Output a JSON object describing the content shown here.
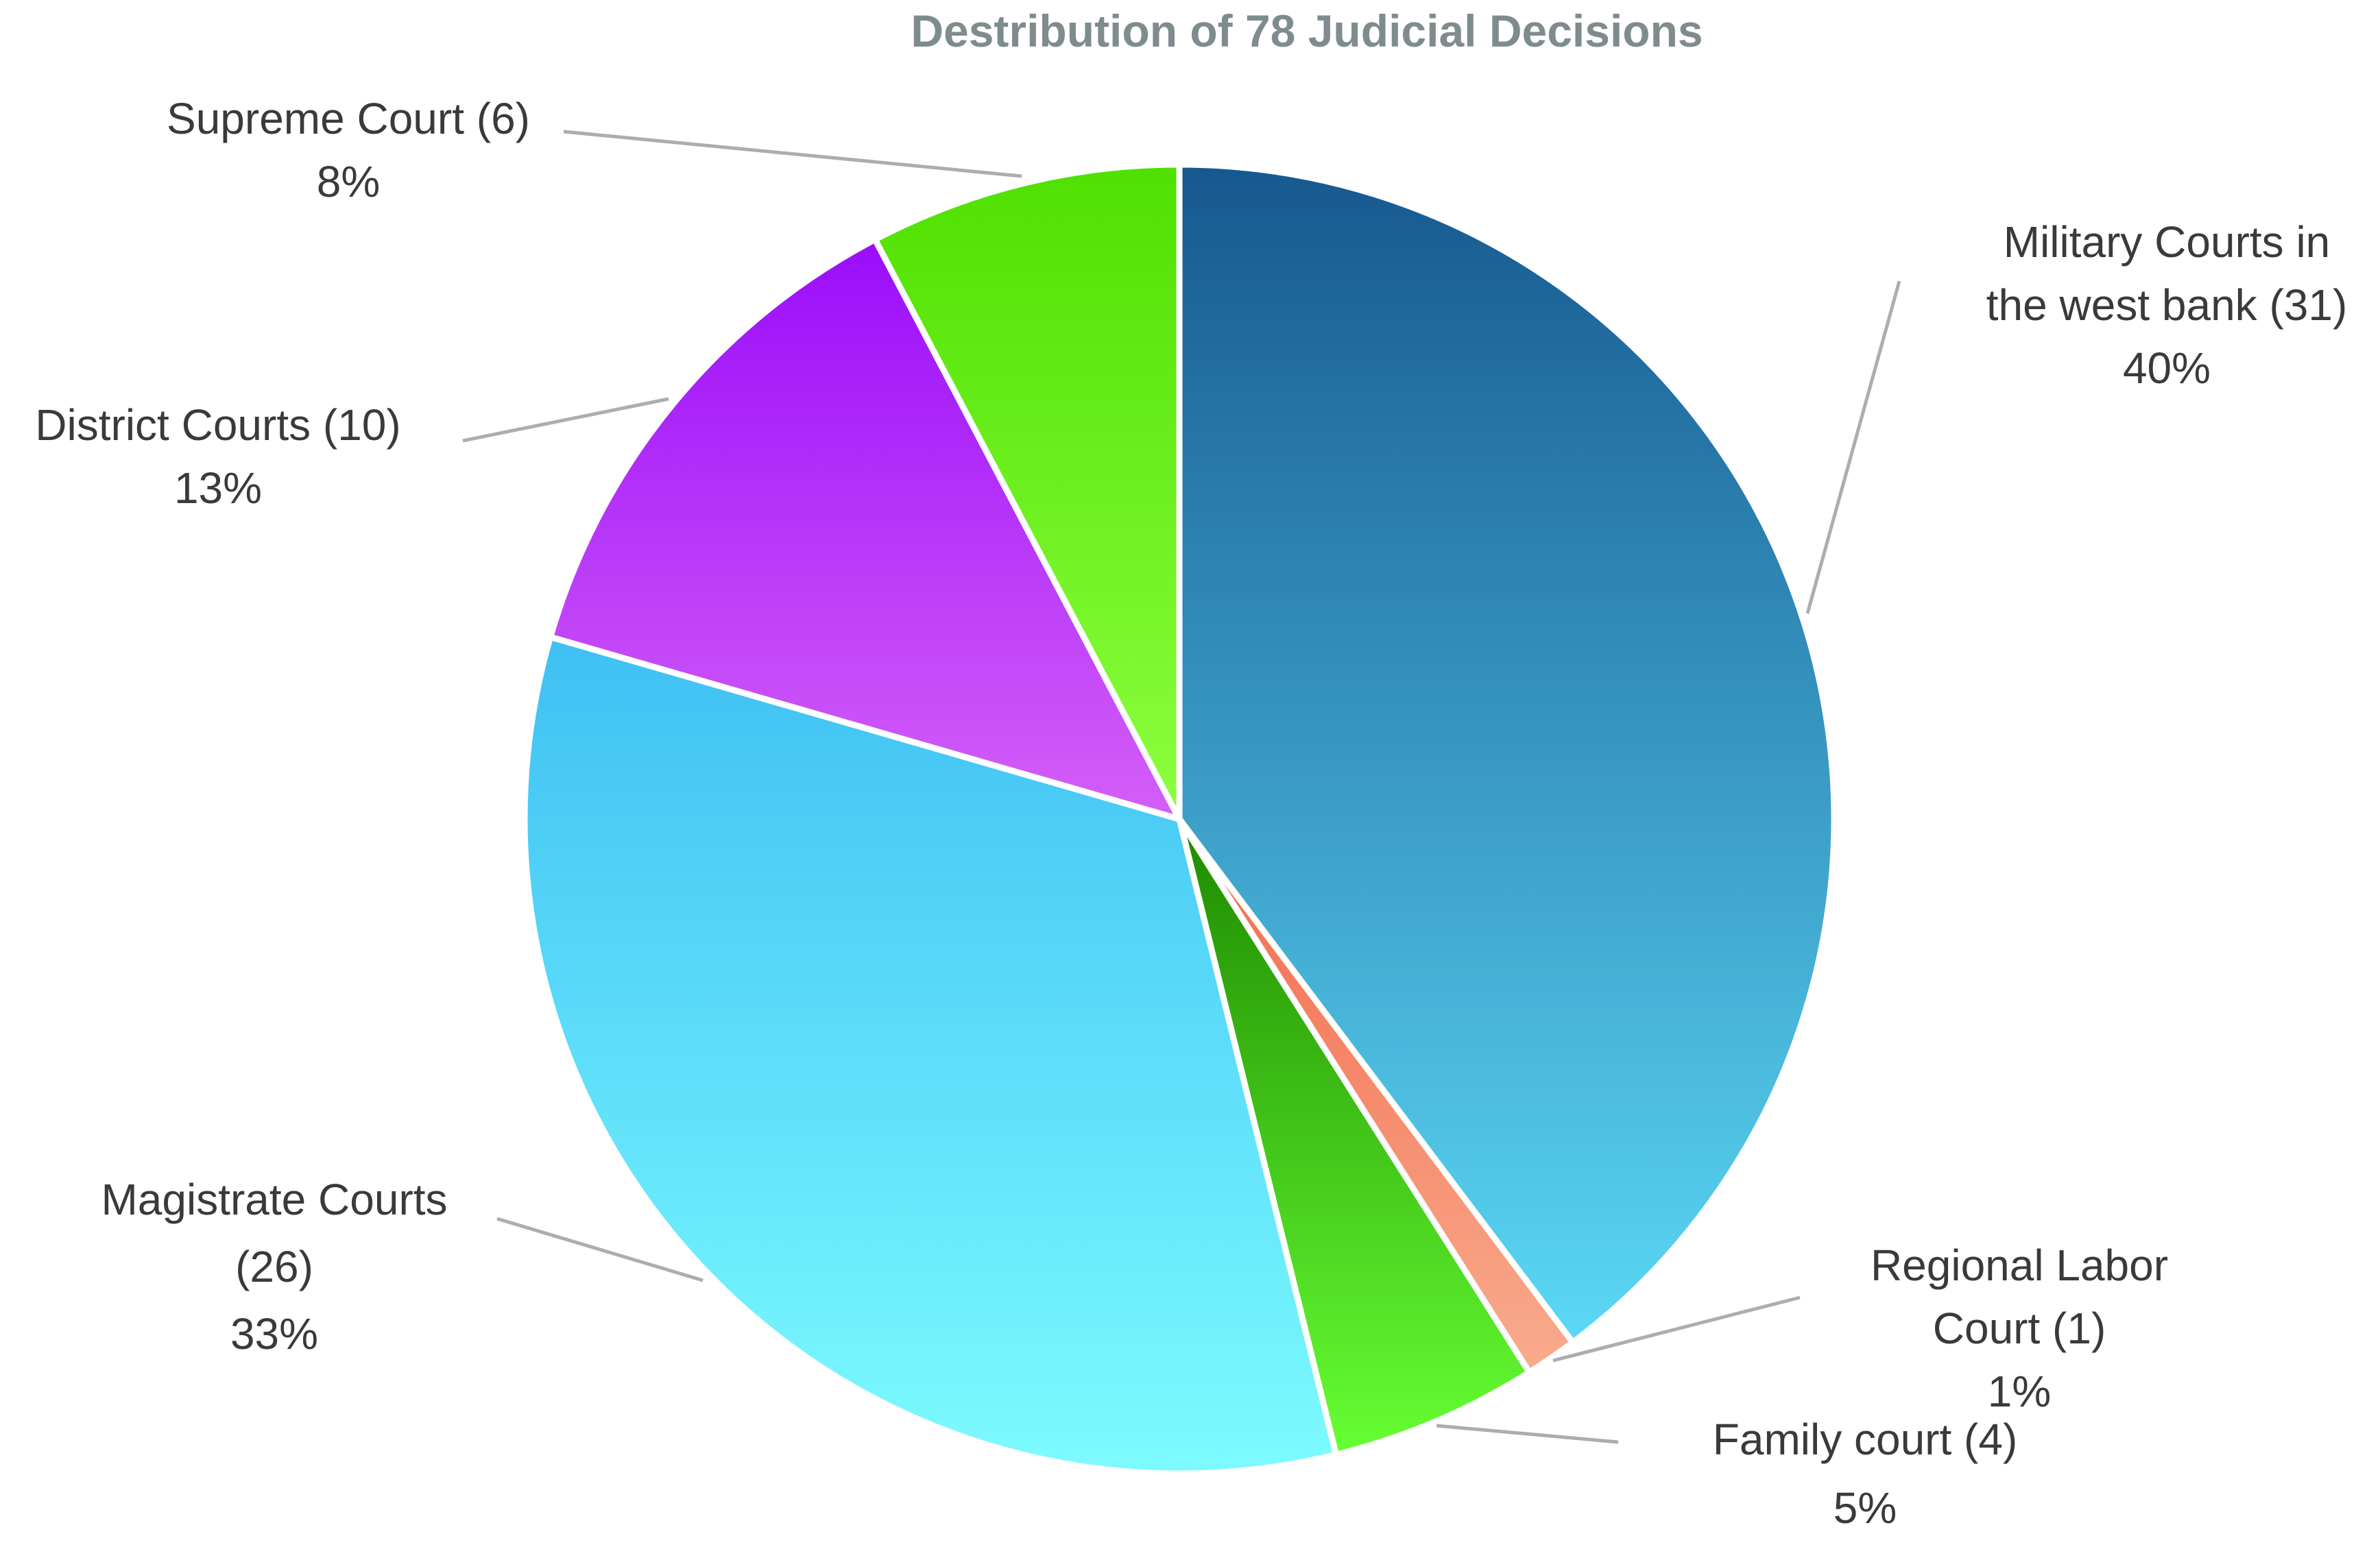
{
  "chart_data": {
    "type": "pie",
    "title": "Destribution of 78 Judicial Decisions",
    "slices": [
      {
        "key": "military",
        "lines": [
          "Military Courts in",
          "the west bank (31)",
          "40%"
        ],
        "value": 31,
        "percent": 40,
        "color_top": "#16588f",
        "color_bottom": "#5bd8f5"
      },
      {
        "key": "labor",
        "lines": [
          "Regional Labor",
          "Court (1)",
          "1%"
        ],
        "value": 1,
        "percent": 1,
        "color_top": "#f26a4b",
        "color_bottom": "#f9ab8e"
      },
      {
        "key": "family",
        "lines": [
          "Family court (4)",
          "5%"
        ],
        "value": 4,
        "percent": 5,
        "color_top": "#1e8a00",
        "color_bottom": "#66ff33"
      },
      {
        "key": "magistrate",
        "lines": [
          "Magistrate Courts",
          "(26)",
          "33%"
        ],
        "value": 26,
        "percent": 33,
        "color_top": "#3ec0f3",
        "color_bottom": "#7dfbff"
      },
      {
        "key": "district",
        "lines": [
          "District Courts (10)",
          "13%"
        ],
        "value": 10,
        "percent": 13,
        "color_top": "#9a0dfb",
        "color_bottom": "#d45ff7"
      },
      {
        "key": "supreme",
        "lines": [
          "Supreme Court (6)",
          "8%"
        ],
        "value": 6,
        "percent": 8,
        "color_top": "#4fe000",
        "color_bottom": "#8cff3f"
      }
    ]
  }
}
